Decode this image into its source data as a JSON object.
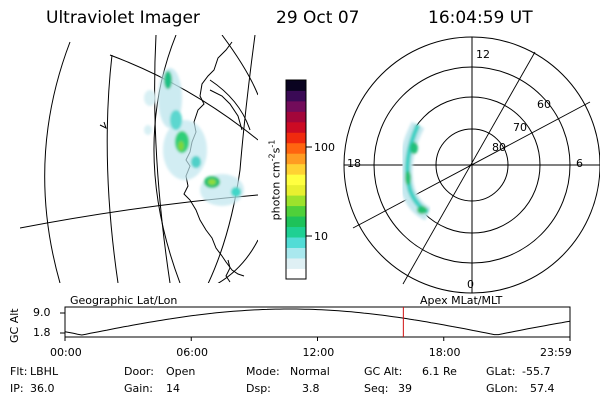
{
  "header": {
    "instrument": "Ultraviolet Imager",
    "date": "29 Oct 07",
    "time": "16:04:59 UT"
  },
  "colorbar": {
    "label": "photon cm",
    "label_sup1": "-2",
    "label_mid": "s",
    "label_sup2": "-1",
    "ticks": [
      "100",
      "10"
    ],
    "colors": [
      "#ffffff",
      "#dff0f4",
      "#a9e8ee",
      "#52dcd6",
      "#1fd093",
      "#1ec25a",
      "#4fd03a",
      "#9de22c",
      "#e8f030",
      "#ffff40",
      "#ffd233",
      "#ff9c22",
      "#ff6510",
      "#f02a0e",
      "#cc0b24",
      "#a3063a",
      "#720c5a",
      "#3a0a55",
      "#0a0320"
    ]
  },
  "polar": {
    "mlt_labels": [
      "12",
      "18",
      "6",
      "0"
    ],
    "lat_labels": [
      "60",
      "70",
      "80"
    ]
  },
  "alt_plot": {
    "left_title": "Geographic Lat/Lon",
    "right_title": "Apex MLat/MLT",
    "ylabel": "GC Alt",
    "yticks": [
      "9.0",
      "1.8"
    ],
    "xticks": [
      "00:00",
      "06:00",
      "12:00",
      "18:00",
      "23:59"
    ],
    "current_time_hours": 16.08,
    "x_range_hours": [
      0,
      24
    ]
  },
  "info": {
    "row1": [
      {
        "k": "Flt:",
        "v": "LBHL"
      },
      {
        "k": "Door:",
        "v": "Open"
      },
      {
        "k": "Mode:",
        "v": "Normal"
      },
      {
        "k": "GC Alt:",
        "v": "6.1 Re"
      },
      {
        "k": "GLat:",
        "v": "-55.7"
      }
    ],
    "row2": [
      {
        "k": "IP:",
        "v": "36.0"
      },
      {
        "k": "Gain:",
        "v": "14"
      },
      {
        "k": "Dsp:",
        "v": "3.8"
      },
      {
        "k": "Seq:",
        "v": "39"
      },
      {
        "k": "GLon:",
        "v": "57.4"
      }
    ]
  }
}
